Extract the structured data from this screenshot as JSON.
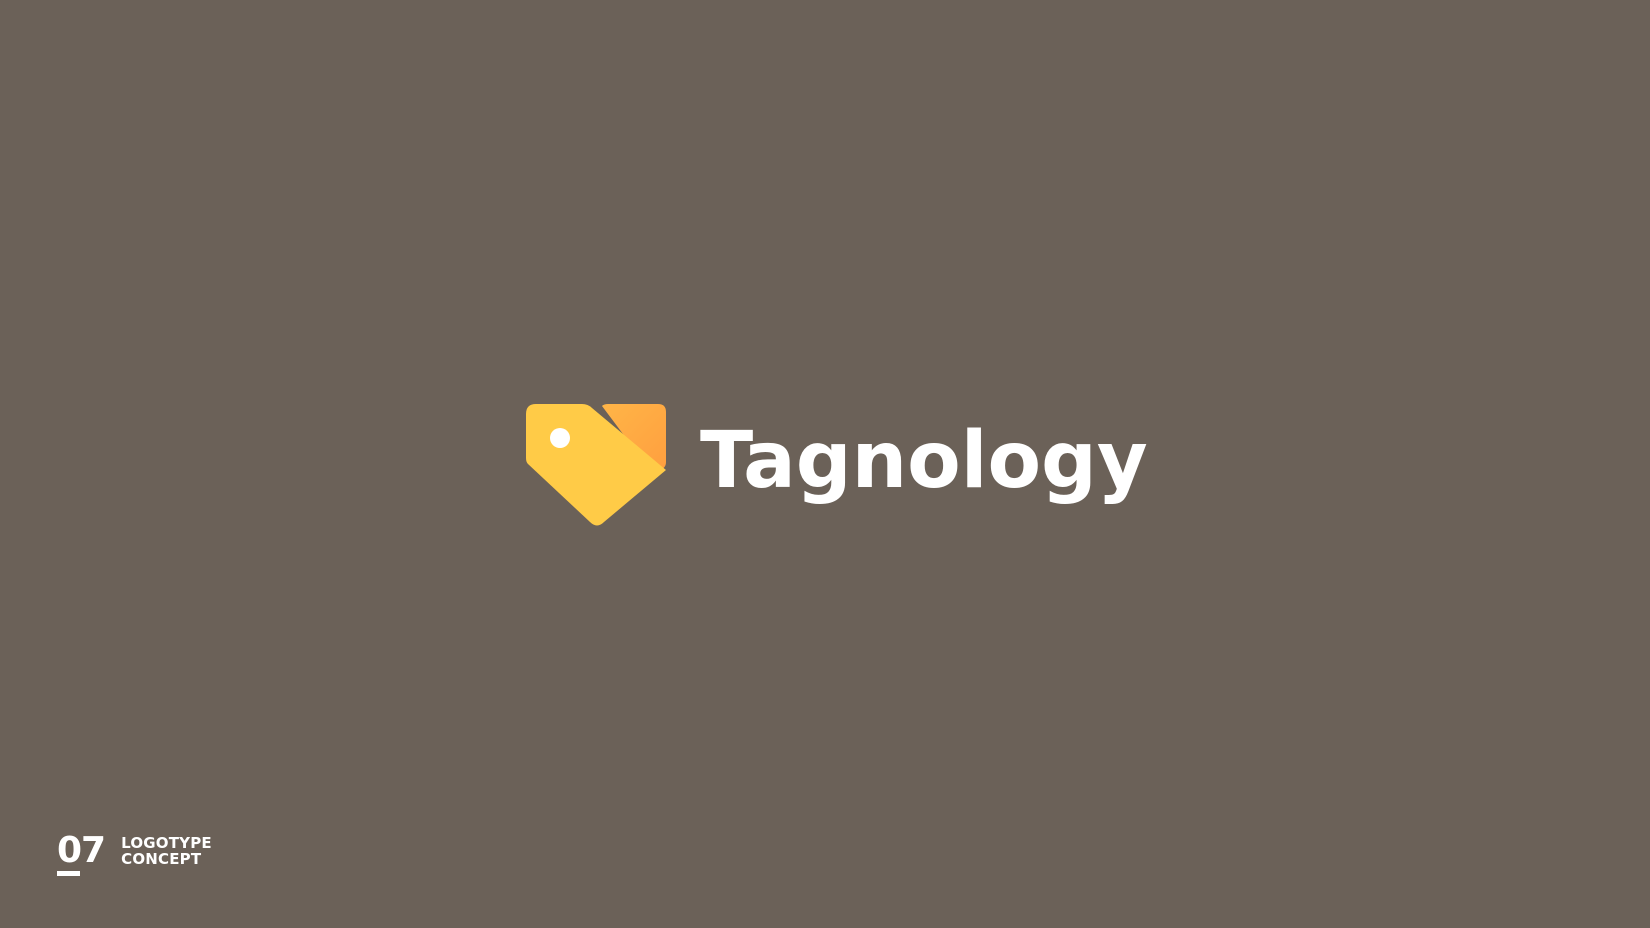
{
  "slide": {
    "background_color": "#6b6158"
  },
  "logo": {
    "icon": "heart-price-tag-icon",
    "wordmark": "Tagnology",
    "colors": {
      "tag_yellow": "#ffcb47",
      "tag_orange_light": "#ffb547",
      "tag_orange_dark": "#ff9f3f",
      "hole": "#ffffff",
      "wordmark": "#ffffff"
    }
  },
  "footer": {
    "number": "07",
    "caption_line1": "LOGOTYPE",
    "caption_line2": "CONCEPT"
  }
}
